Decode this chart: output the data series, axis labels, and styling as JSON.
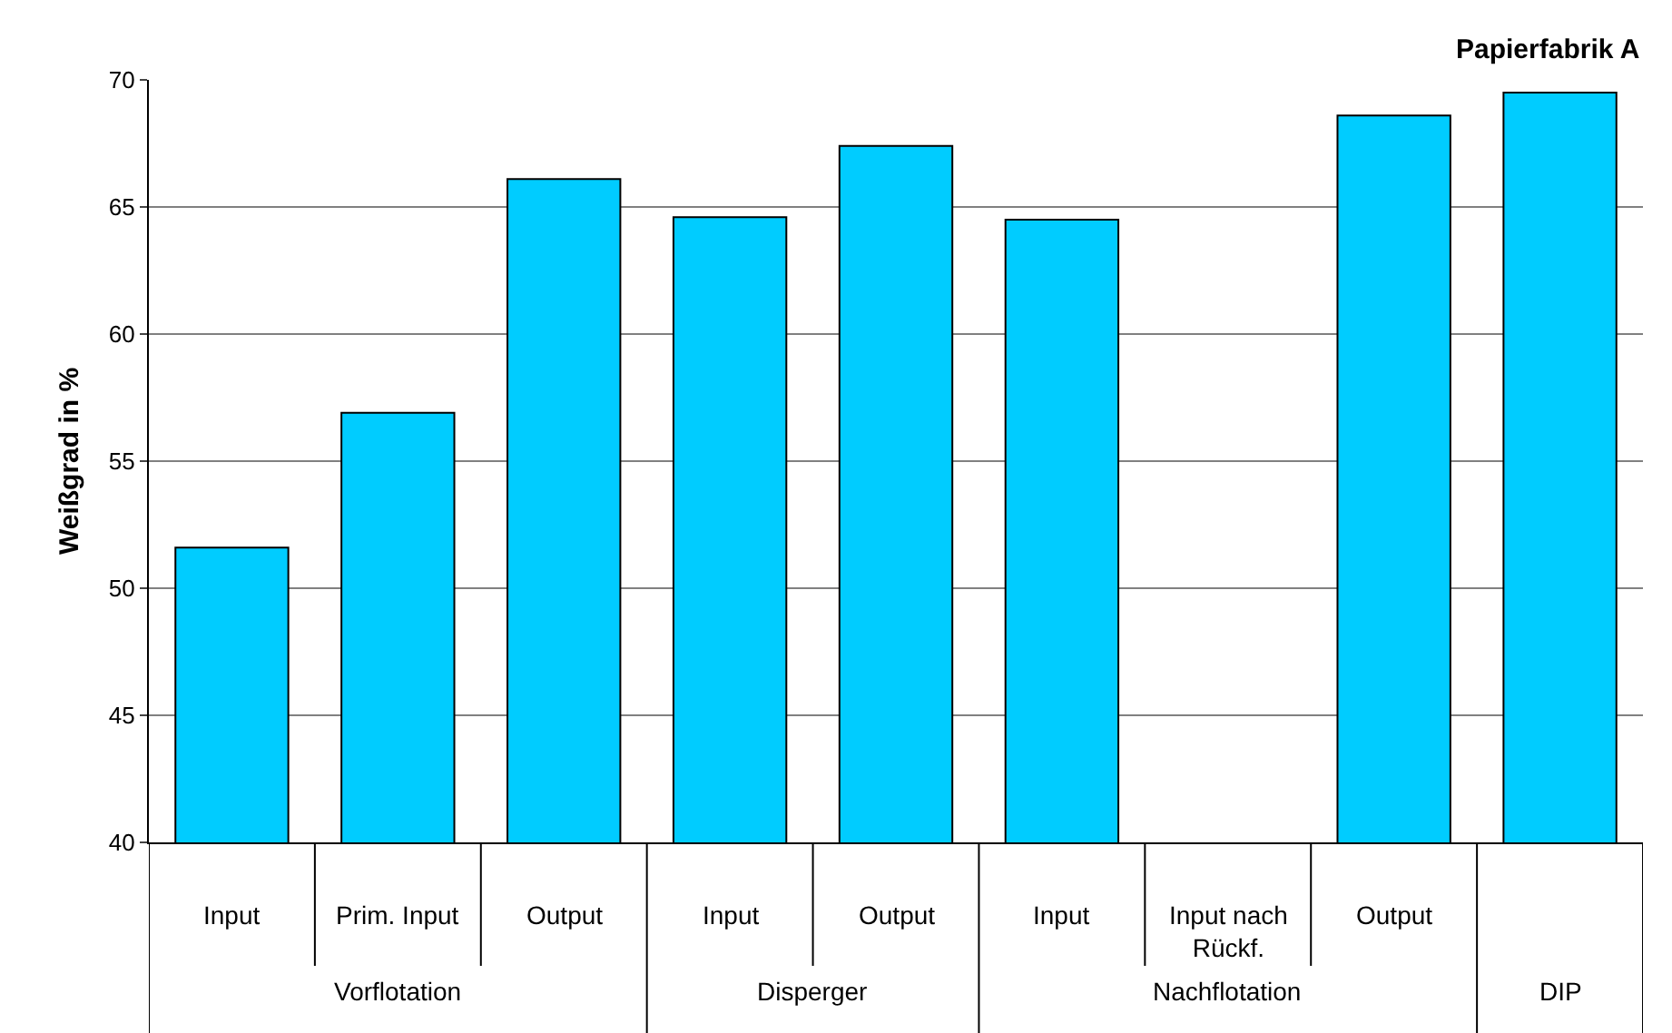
{
  "chart_data": {
    "type": "bar",
    "title": "Papierfabrik A",
    "ylabel": "Weißgrad in %",
    "categories": [
      "Input",
      "Prim. Input",
      "Output",
      "Input",
      "Output",
      "Input",
      "Input nach Rückf.",
      "Output",
      null
    ],
    "values": [
      51.6,
      56.9,
      66.1,
      64.6,
      67.4,
      64.5,
      null,
      68.6,
      69.5
    ],
    "color": "#00ccff",
    "annotations": [
      "Vorflotation",
      "Disperger",
      "Nachflotation",
      "DIP"
    ],
    "ylim": [
      40,
      70
    ],
    "yticks": [
      40,
      45,
      50,
      55,
      60,
      65,
      70
    ],
    "grid": "y"
  }
}
